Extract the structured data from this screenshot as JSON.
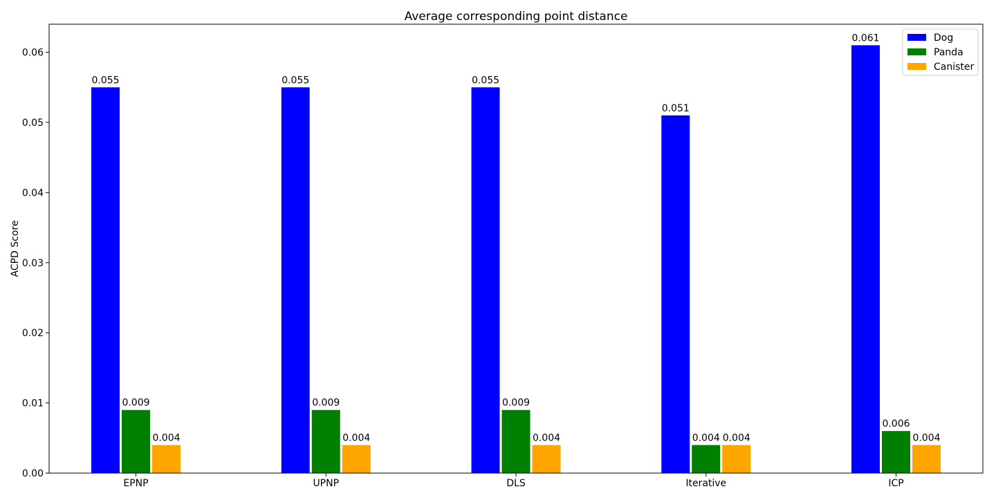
{
  "chart_data": {
    "type": "bar",
    "title": "Average corresponding point distance",
    "xlabel": "",
    "ylabel": "ACPD Score",
    "ylim": [
      0,
      0.064
    ],
    "yticks": [
      "0.00",
      "0.01",
      "0.02",
      "0.03",
      "0.04",
      "0.05",
      "0.06"
    ],
    "yticks_values": [
      0,
      0.01,
      0.02,
      0.03,
      0.04,
      0.05,
      0.06
    ],
    "categories": [
      "EPNP",
      "UPNP",
      "DLS",
      "Iterative",
      "ICP"
    ],
    "series": [
      {
        "name": "Dog",
        "values": [
          0.055,
          0.055,
          0.055,
          0.051,
          0.061
        ],
        "labels": [
          "0.055",
          "0.055",
          "0.055",
          "0.051",
          "0.061"
        ],
        "color": "#0000ff"
      },
      {
        "name": "Panda",
        "values": [
          0.009,
          0.009,
          0.009,
          0.004,
          0.006
        ],
        "labels": [
          "0.009",
          "0.009",
          "0.009",
          "0.004",
          "0.006"
        ],
        "color": "#008000"
      },
      {
        "name": "Canister",
        "values": [
          0.004,
          0.004,
          0.004,
          0.004,
          0.004
        ],
        "labels": [
          "0.004",
          "0.004",
          "0.004",
          "0.004",
          "0.004"
        ],
        "color": "#ffa500"
      }
    ],
    "legend_position": "top-right",
    "grid": false
  }
}
